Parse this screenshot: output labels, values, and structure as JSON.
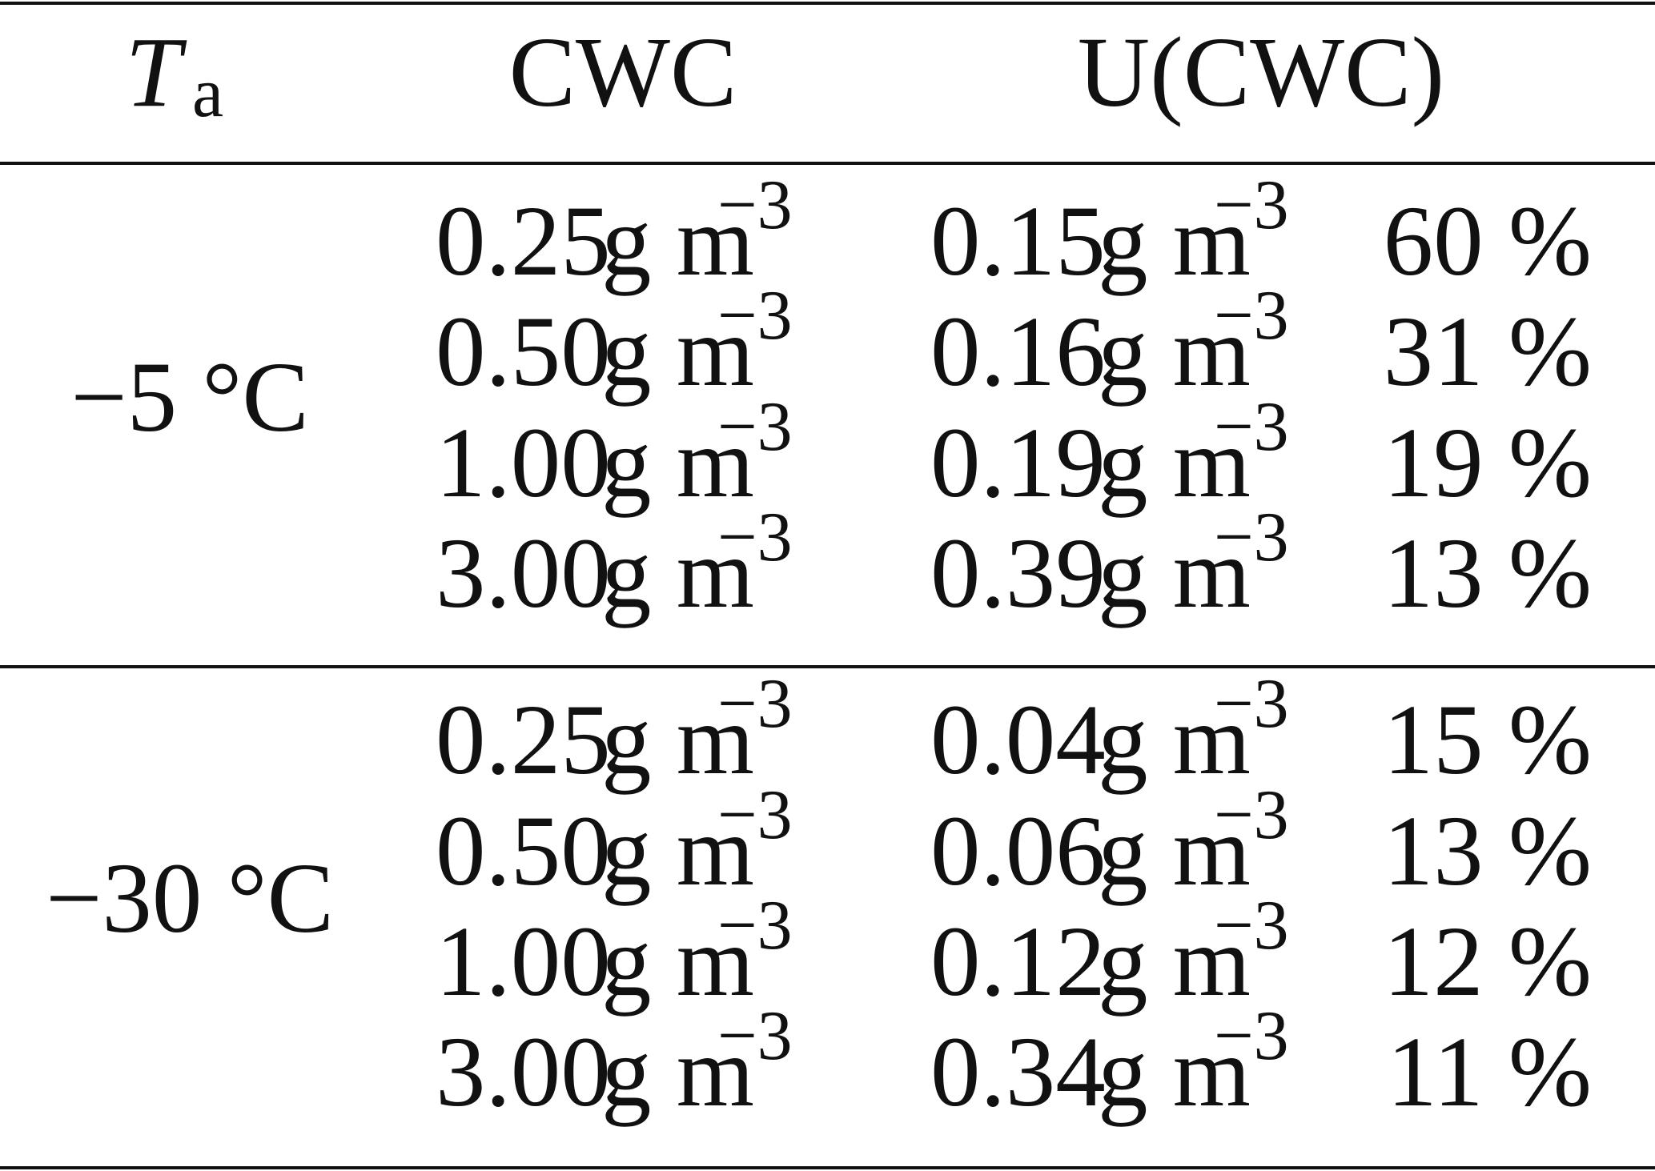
{
  "header": {
    "ta": {
      "symbol": "T",
      "subscript": "a"
    },
    "cwc": "CWC",
    "ucwc": "U(CWC)"
  },
  "groups": [
    {
      "temperature": "−5 °C",
      "rows": [
        {
          "cwc": {
            "value": "0.25",
            "unit": "g m",
            "exp": "−3"
          },
          "u": {
            "value": "0.15",
            "unit": "g m",
            "exp": "−3"
          },
          "percent": "60 %"
        },
        {
          "cwc": {
            "value": "0.50",
            "unit": "g m",
            "exp": "−3"
          },
          "u": {
            "value": "0.16",
            "unit": "g m",
            "exp": "−3"
          },
          "percent": "31 %"
        },
        {
          "cwc": {
            "value": "1.00",
            "unit": "g m",
            "exp": "−3"
          },
          "u": {
            "value": "0.19",
            "unit": "g m",
            "exp": "−3"
          },
          "percent": "19 %"
        },
        {
          "cwc": {
            "value": "3.00",
            "unit": "g m",
            "exp": "−3"
          },
          "u": {
            "value": "0.39",
            "unit": "g m",
            "exp": "−3"
          },
          "percent": "13 %"
        }
      ]
    },
    {
      "temperature": "−30 °C",
      "rows": [
        {
          "cwc": {
            "value": "0.25",
            "unit": "g m",
            "exp": "−3"
          },
          "u": {
            "value": "0.04",
            "unit": "g m",
            "exp": "−3"
          },
          "percent": "15 %"
        },
        {
          "cwc": {
            "value": "0.50",
            "unit": "g m",
            "exp": "−3"
          },
          "u": {
            "value": "0.06",
            "unit": "g m",
            "exp": "−3"
          },
          "percent": "13 %"
        },
        {
          "cwc": {
            "value": "1.00",
            "unit": "g m",
            "exp": "−3"
          },
          "u": {
            "value": "0.12",
            "unit": "g m",
            "exp": "−3"
          },
          "percent": "12 %"
        },
        {
          "cwc": {
            "value": "3.00",
            "unit": "g m",
            "exp": "−3"
          },
          "u": {
            "value": "0.34",
            "unit": "g m",
            "exp": "−3"
          },
          "percent": "11 %"
        }
      ]
    }
  ]
}
